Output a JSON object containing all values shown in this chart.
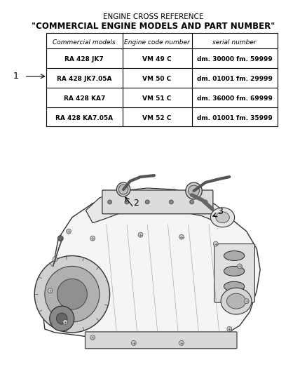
{
  "title_line1": "ENGINE CROSS REFERENCE",
  "title_line2": "\"COMMERCIAL ENGINE MODELS AND PART NUMBER\"",
  "table_headers": [
    "Commercial models",
    "Engine code number",
    "serial number"
  ],
  "table_rows": [
    [
      "RA 428 JK7",
      "VM 49 C",
      "dm. 30000 fm. 59999"
    ],
    [
      "RA 428 JK7.05A",
      "VM 50 C",
      "dm. 01001 fm. 29999"
    ],
    [
      "RA 428 KA7",
      "VM 51 C",
      "dm. 36000 fm. 69999"
    ],
    [
      "RA 428 KA7.05A",
      "VM 52 C",
      "dm. 01001 fm. 35999"
    ]
  ],
  "label1": "1",
  "label2": "2",
  "label3": "3",
  "bg_color": "#ffffff",
  "text_color": "#000000",
  "table_border_color": "#000000",
  "title_fontsize": 7.5,
  "title2_fontsize": 8.5,
  "header_fontsize": 6.5,
  "cell_fontsize": 6.5,
  "label_fontsize": 9
}
